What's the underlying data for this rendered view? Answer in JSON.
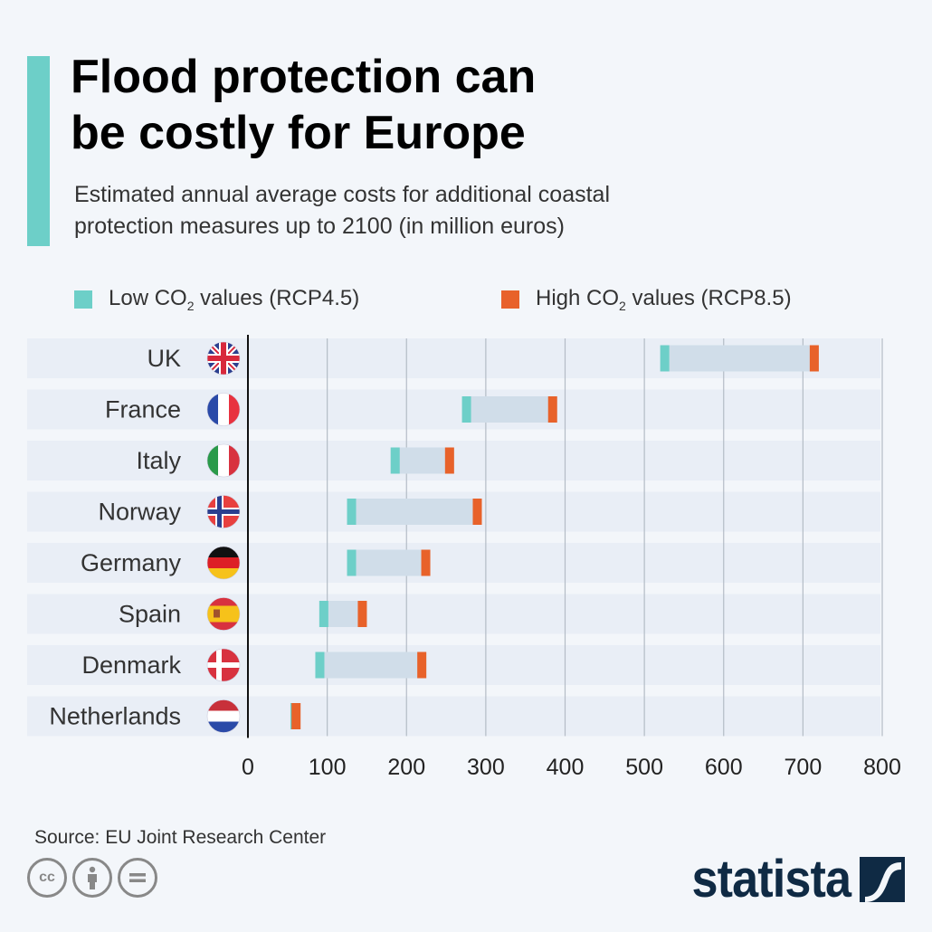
{
  "header": {
    "title_line1": "Flood protection can",
    "title_line2": "be costly for Europe",
    "subtitle_line1": "Estimated annual average costs for additional coastal",
    "subtitle_line2": "protection measures up to 2100 (in million euros)"
  },
  "legend": {
    "low": {
      "prefix": "Low CO",
      "sub": "2",
      "suffix": " values (RCP4.5)",
      "color": "#6dcfc8"
    },
    "high": {
      "prefix": "High CO",
      "sub": "2",
      "suffix": " values (RCP8.5)",
      "color": "#e8622a"
    }
  },
  "chart_data": {
    "type": "dumbbell",
    "title": "Flood protection can be costly for Europe",
    "subtitle": "Estimated annual average costs for additional coastal protection measures up to 2100 (in million euros)",
    "xlabel": "",
    "ylabel": "",
    "xlim": [
      0,
      800
    ],
    "xticks": [
      0,
      100,
      200,
      300,
      400,
      500,
      600,
      700,
      800
    ],
    "grid": true,
    "legend_position": "top",
    "categories": [
      "UK",
      "France",
      "Italy",
      "Norway",
      "Germany",
      "Spain",
      "Denmark",
      "Netherlands"
    ],
    "flags": [
      "uk",
      "france",
      "italy",
      "norway",
      "germany",
      "spain",
      "denmark",
      "netherlands"
    ],
    "series": [
      {
        "name": "Low CO2 values (RCP4.5)",
        "values": [
          520,
          270,
          180,
          125,
          125,
          90,
          85,
          65
        ]
      },
      {
        "name": "High CO2 values (RCP8.5)",
        "values": [
          720,
          390,
          260,
          295,
          230,
          150,
          225,
          55
        ]
      }
    ]
  },
  "colors": {
    "low": "#6dcfc8",
    "high": "#e8622a",
    "range": "#d0dde9",
    "row_bg": "#e9eef6",
    "grid": "#b4bcc6"
  },
  "footer": {
    "source": "Source: EU Joint Research Center",
    "license_icons": [
      "cc-icon",
      "by-icon",
      "nd-icon"
    ],
    "cc_label": "cc",
    "brand": "statista"
  }
}
